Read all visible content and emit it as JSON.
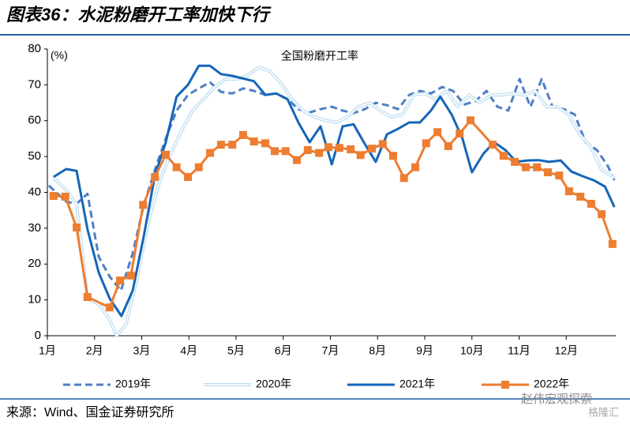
{
  "chart_data": {
    "type": "line",
    "title": "图表36：水泥粉磨开工率加快下行",
    "subtitle": "全国粉磨开工率",
    "y_label": "(%)",
    "source": "来源：Wind、国金证券研究所",
    "watermark": [
      "赵伟宏观探索",
      "格隆汇"
    ],
    "xlim": [
      1,
      13.05
    ],
    "xticks": [
      {
        "value": 1,
        "label": "1月"
      },
      {
        "value": 2,
        "label": "2月"
      },
      {
        "value": 3,
        "label": "3月"
      },
      {
        "value": 4,
        "label": "4月"
      },
      {
        "value": 5,
        "label": "5月"
      },
      {
        "value": 6,
        "label": "6月"
      },
      {
        "value": 7,
        "label": "7月"
      },
      {
        "value": 8,
        "label": "8月"
      },
      {
        "value": 9,
        "label": "9月"
      },
      {
        "value": 10,
        "label": "10月"
      },
      {
        "value": 11,
        "label": "11月"
      },
      {
        "value": 12,
        "label": "12月"
      }
    ],
    "ylim": [
      0,
      80
    ],
    "yticks": [
      0,
      10,
      20,
      30,
      40,
      50,
      60,
      70,
      80
    ],
    "grid": false,
    "legend": "bottom",
    "series": [
      {
        "name": "2019年",
        "color": "#4f7fc4",
        "line_style": "dashed",
        "x": [
          1.03,
          1.4,
          1.62,
          1.85,
          2.09,
          2.32,
          2.56,
          2.81,
          3.04,
          3.28,
          3.51,
          3.74,
          3.98,
          4.21,
          4.45,
          4.68,
          4.92,
          5.15,
          5.38,
          5.62,
          5.85,
          6.09,
          6.32,
          6.56,
          6.79,
          7.03,
          7.26,
          7.49,
          7.73,
          7.96,
          8.2,
          8.43,
          8.67,
          8.9,
          9.13,
          9.37,
          9.6,
          9.84,
          10.07,
          10.31,
          10.54,
          10.77,
          11.01,
          11.24,
          11.48,
          11.71,
          11.95,
          12.18,
          12.41,
          12.65,
          12.88,
          13.02
        ],
        "values": [
          41.9,
          37.4,
          36.8,
          39.6,
          22,
          16.5,
          12.6,
          23,
          36.3,
          46.3,
          55,
          62.8,
          67.2,
          69,
          70.7,
          68,
          67.6,
          69,
          68.3,
          67.2,
          67.6,
          66,
          63.2,
          62.3,
          63.2,
          63.9,
          62.8,
          62.1,
          63.2,
          65,
          64.3,
          63.2,
          67.2,
          68.3,
          67.6,
          69.4,
          68.3,
          64.5,
          65.4,
          68.3,
          63.9,
          62.8,
          71.6,
          63.9,
          71.6,
          63.9,
          63.2,
          61.7,
          54,
          51.8,
          47.4,
          43.4
        ]
      },
      {
        "name": "2020年",
        "color": "#bcdcf0",
        "line_style": "double",
        "x": [
          1.13,
          1.4,
          1.62,
          1.85,
          2.09,
          2.32,
          2.47,
          2.67,
          2.91,
          3.14,
          3.38,
          3.61,
          3.85,
          4.08,
          4.31,
          4.55,
          4.78,
          5.02,
          5.25,
          5.49,
          5.72,
          5.95,
          6.19,
          6.42,
          6.66,
          6.89,
          7.13,
          7.36,
          7.59,
          7.83,
          8.06,
          8.3,
          8.53,
          8.77,
          9.0,
          9.23,
          9.47,
          9.7,
          9.94,
          10.17,
          10.41,
          10.64,
          10.87,
          11.11,
          11.34,
          11.58,
          11.81,
          12.05,
          12.28,
          12.51,
          12.75,
          13.02
        ],
        "values": [
          44,
          40.7,
          36.8,
          10.4,
          8.8,
          4.4,
          0,
          3.3,
          16.5,
          31.9,
          43,
          50.7,
          57.3,
          62.8,
          66,
          69.4,
          71.6,
          71.6,
          72.7,
          74.9,
          73.8,
          70.5,
          66,
          62.8,
          61,
          60.1,
          59.5,
          61,
          63.9,
          65,
          62.8,
          61,
          61.7,
          67.2,
          67.6,
          66,
          68.3,
          63.9,
          67.2,
          65,
          67.2,
          67.2,
          67.6,
          67.2,
          68.3,
          63.9,
          63.9,
          61.7,
          56.2,
          52.9,
          46.3,
          44
        ]
      },
      {
        "name": "2021年",
        "color": "#1466b8",
        "line_style": "solid",
        "x": [
          1.13,
          1.4,
          1.62,
          1.85,
          2.09,
          2.32,
          2.57,
          2.81,
          3.04,
          3.28,
          3.51,
          3.74,
          3.98,
          4.21,
          4.45,
          4.68,
          4.92,
          5.38,
          5.62,
          5.85,
          6.09,
          6.32,
          6.56,
          6.79,
          7.03,
          7.26,
          7.49,
          7.73,
          7.96,
          8.2,
          8.43,
          8.67,
          8.9,
          9.13,
          9.33,
          9.57,
          9.8,
          10.0,
          10.24,
          10.47,
          10.71,
          10.94,
          11.18,
          11.41,
          11.64,
          11.88,
          12.11,
          12.35,
          12.58,
          12.82,
          13.02
        ],
        "values": [
          44.3,
          46.5,
          46,
          29.7,
          17.6,
          10.4,
          5.5,
          12.6,
          27.5,
          44.7,
          54,
          66.7,
          70,
          75.3,
          75.3,
          73,
          72.5,
          71,
          67.2,
          67.6,
          66,
          59.5,
          54,
          58.4,
          47.8,
          58.4,
          59,
          53.5,
          48.5,
          56.2,
          57.7,
          59.5,
          59.5,
          62.8,
          66.7,
          61.7,
          55,
          45.6,
          50.7,
          54,
          51.8,
          48.5,
          48.9,
          49,
          48.5,
          48.9,
          45.8,
          44.5,
          43.4,
          41.6,
          35.9
        ]
      },
      {
        "name": "2022年",
        "color": "#ed7d31",
        "line_style": "solid",
        "marker": "square",
        "x": [
          1.13,
          1.38,
          1.62,
          1.85,
          2.32,
          2.54,
          2.77,
          3.03,
          3.28,
          3.51,
          3.74,
          3.98,
          4.21,
          4.45,
          4.68,
          4.92,
          5.15,
          5.38,
          5.62,
          5.82,
          6.05,
          6.29,
          6.52,
          6.76,
          6.96,
          7.19,
          7.43,
          7.64,
          7.88,
          8.11,
          8.33,
          8.56,
          8.8,
          9.03,
          9.27,
          9.5,
          9.74,
          9.97,
          10.44,
          10.67,
          10.91,
          11.14,
          11.38,
          11.61,
          11.85,
          12.06,
          12.3,
          12.53,
          12.75,
          12.98
        ],
        "values": [
          39,
          38.8,
          30.2,
          10.8,
          7.9,
          15.4,
          16.8,
          36.5,
          44.3,
          50.5,
          47,
          44.3,
          47,
          51,
          53.3,
          53.3,
          56,
          54.2,
          53.7,
          51.5,
          51.5,
          49,
          51.8,
          51,
          52.6,
          52.4,
          52,
          50.4,
          52.2,
          53.5,
          50.2,
          44,
          47,
          53.7,
          56.8,
          52.9,
          56.4,
          60.1,
          53.3,
          50.2,
          48.5,
          47,
          47,
          45.6,
          44.7,
          40.3,
          38.8,
          36.8,
          33.9,
          25.6
        ]
      }
    ]
  }
}
